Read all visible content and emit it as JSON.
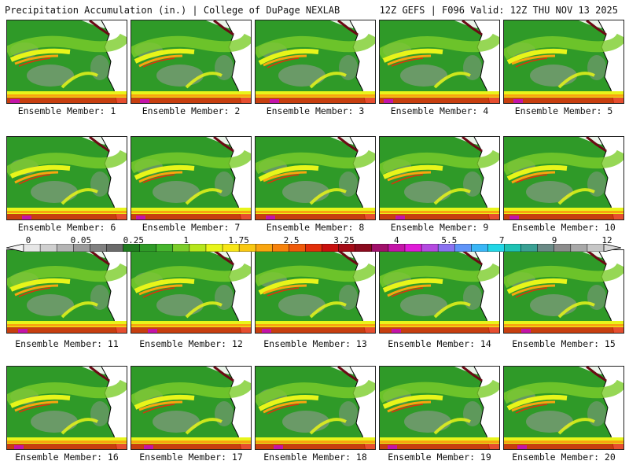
{
  "header": {
    "title": "Precipitation Accumulation (in.) | College of DuPage NEXLAB",
    "run_info": "12Z GEFS | F096 Valid: 12Z THU NOV 13 2025"
  },
  "members": [
    "Ensemble Member: 1",
    "Ensemble Member: 2",
    "Ensemble Member: 3",
    "Ensemble Member: 4",
    "Ensemble Member: 5",
    "Ensemble Member: 6",
    "Ensemble Member: 7",
    "Ensemble Member: 8",
    "Ensemble Member: 9",
    "Ensemble Member: 10",
    "Ensemble Member: 11",
    "Ensemble Member: 12",
    "Ensemble Member: 13",
    "Ensemble Member: 14",
    "Ensemble Member: 15",
    "Ensemble Member: 16",
    "Ensemble Member: 17",
    "Ensemble Member: 18",
    "Ensemble Member: 19",
    "Ensemble Member: 20"
  ],
  "colorbar": {
    "labels": [
      "0",
      "0.05",
      "0.25",
      "1",
      "1.75",
      "2.5",
      "3.25",
      "4",
      "5.5",
      "7",
      "9",
      "12"
    ],
    "colors": [
      "#e6e6e6",
      "#cfcfcf",
      "#b4b4b4",
      "#9a9a9a",
      "#808080",
      "#6a6a6a",
      "#1f7a1f",
      "#2f9a28",
      "#46b52e",
      "#7ccd2a",
      "#b6e61c",
      "#e8f51a",
      "#f7e617",
      "#f9c812",
      "#f9a50f",
      "#f6820c",
      "#ef5a0a",
      "#e22f0a",
      "#c8100e",
      "#a40a16",
      "#8a0a1e",
      "#a0106a",
      "#c414a8",
      "#e01cd8",
      "#b44ae0",
      "#8a72f0",
      "#5f94f8",
      "#3ab6f6",
      "#22d6e6",
      "#1ec2b4",
      "#3aa094",
      "#6a8a86",
      "#8c8c8c",
      "#a8a8a8",
      "#c6c6c6"
    ]
  },
  "map_colors": {
    "base_green": "#2f9a28",
    "dark_green": "#1f7a1f",
    "light_green": "#7ccd2a",
    "yellow": "#e8f51a",
    "orange": "#f9a50f",
    "red": "#e22f0a",
    "magenta": "#c414a8",
    "gray": "#9a9a9a",
    "land": "#ffffff"
  }
}
